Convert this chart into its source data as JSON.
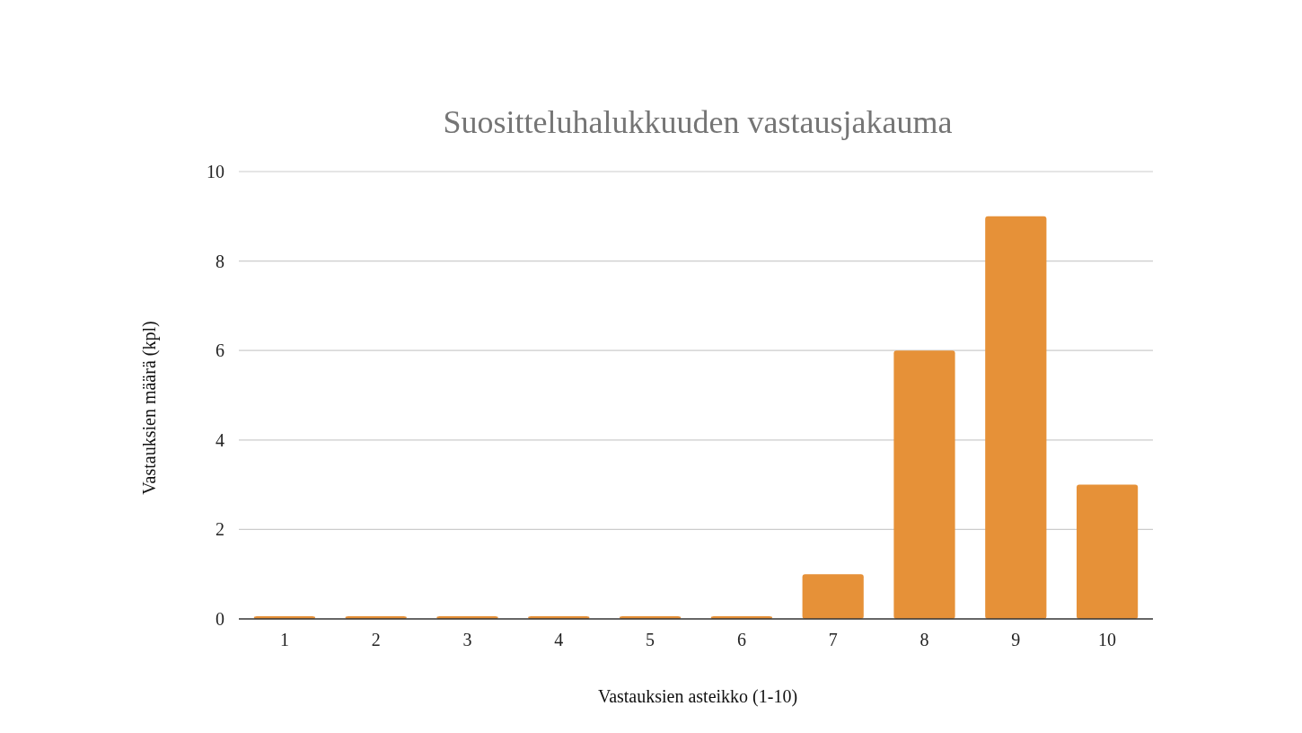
{
  "chart_data": {
    "type": "bar",
    "title": "Suositteluhalukkuuden vastausjakauma",
    "xlabel": "Vastauksien asteikko (1-10)",
    "ylabel": "Vastauksien määrä (kpl)",
    "categories": [
      "1",
      "2",
      "3",
      "4",
      "5",
      "6",
      "7",
      "8",
      "9",
      "10"
    ],
    "values": [
      0,
      0,
      0,
      0,
      0,
      0,
      1,
      6,
      9,
      3
    ],
    "color": "#e69138",
    "ylim": [
      0,
      10
    ],
    "yticks": [
      0,
      2,
      4,
      6,
      8,
      10
    ],
    "grid": "y"
  }
}
